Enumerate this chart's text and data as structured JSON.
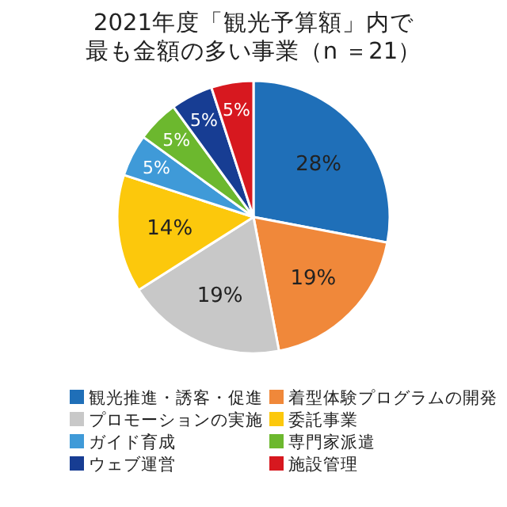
{
  "chart_data": {
    "type": "pie",
    "title": "2021年度「観光予算額」内で最も金額の多い事業（n ＝21）",
    "categories": [
      "観光推進・誘客・促進",
      "着型体験プログラムの開発",
      "プロモーションの実施",
      "委託事業",
      "ガイド育成",
      "専門家派遣",
      "ウェブ運営",
      "施設管理"
    ],
    "values": [
      28,
      19,
      19,
      14,
      5,
      5,
      5,
      5
    ],
    "colors": [
      "#1f6fb8",
      "#f0883a",
      "#c8c8c8",
      "#fcc80c",
      "#3f9ad8",
      "#6cb82e",
      "#173d93",
      "#d7181f"
    ],
    "value_labels": [
      "28%",
      "19%",
      "19%",
      "14%",
      "5%",
      "5%",
      "5%",
      "5%"
    ],
    "legend": "bottom"
  }
}
